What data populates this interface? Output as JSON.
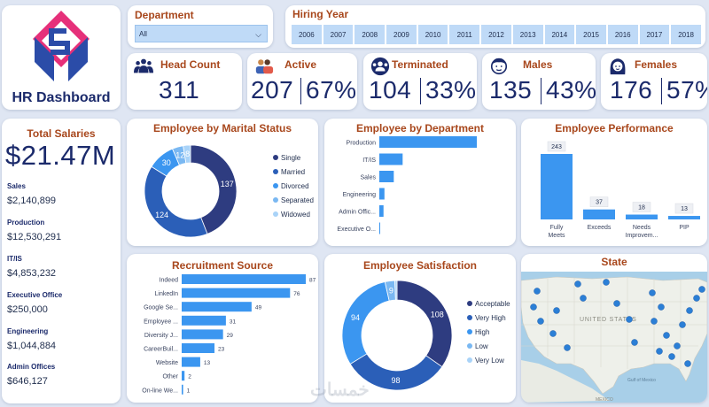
{
  "app": {
    "title": "HR Dashboard"
  },
  "filters": {
    "department_label": "Department",
    "department_value": "All",
    "hiring_year_label": "Hiring Year",
    "years": [
      "2006",
      "2007",
      "2008",
      "2009",
      "2010",
      "2011",
      "2012",
      "2013",
      "2014",
      "2015",
      "2016",
      "2017",
      "2018"
    ]
  },
  "kpis": {
    "head_count": {
      "label": "Head Count",
      "value": "311",
      "icon": "people-icon"
    },
    "active": {
      "label": "Active",
      "value": "207",
      "pct": "67%",
      "icon": "employees-icon"
    },
    "terminated": {
      "label": "Terminated",
      "value": "104",
      "pct": "33%",
      "icon": "team-remove-icon"
    },
    "males": {
      "label": "Males",
      "value": "135",
      "pct": "43%",
      "icon": "male-icon"
    },
    "females": {
      "label": "Females",
      "value": "176",
      "pct": "57%",
      "icon": "female-icon"
    }
  },
  "salaries": {
    "title": "Total Salaries",
    "total": "$21.47M",
    "items": [
      {
        "name": "Sales",
        "value": "$2,140,899"
      },
      {
        "name": "Production",
        "value": "$12,530,291"
      },
      {
        "name": "IT/IS",
        "value": "$4,853,232"
      },
      {
        "name": "Executive Office",
        "value": "$250,000"
      },
      {
        "name": "Engineering",
        "value": "$1,044,884"
      },
      {
        "name": "Admin Offices",
        "value": "$646,127"
      }
    ]
  },
  "colors": {
    "title_accent": "#a8471c",
    "navy": "#2e3c80",
    "blue": "#2f7fe0",
    "bar_blue": "#3b96f0",
    "light_blue": "#7ab8f2",
    "pale_blue": "#a9d3f8"
  },
  "chart_data": [
    {
      "type": "pie",
      "title": "Employee by Marital Status",
      "categories": [
        "Single",
        "Married",
        "Divorced",
        "Separated",
        "Widowed"
      ],
      "values": [
        137,
        124,
        30,
        12,
        8
      ],
      "labels_shown": [
        "137",
        "124",
        "30",
        "12",
        "8"
      ]
    },
    {
      "type": "bar",
      "title": "Employee by Department",
      "orientation": "horizontal",
      "categories": [
        "Production",
        "IT/IS",
        "Sales",
        "Engineering",
        "Admin Offic...",
        "Executive O..."
      ],
      "values": [
        209,
        50,
        31,
        11,
        9,
        1
      ]
    },
    {
      "type": "bar",
      "title": "Employee Performance",
      "categories": [
        "Fully Meets",
        "Exceeds",
        "Needs Improvem...",
        "PIP"
      ],
      "values": [
        243,
        37,
        18,
        13
      ]
    },
    {
      "type": "bar",
      "title": "Recruitment Source",
      "orientation": "horizontal",
      "categories": [
        "Indeed",
        "LinkedIn",
        "Google Se...",
        "Employee ...",
        "Diversity J...",
        "CareerBuil...",
        "Website",
        "Other",
        "On-line We..."
      ],
      "values": [
        87,
        76,
        49,
        31,
        29,
        23,
        13,
        2,
        1
      ]
    },
    {
      "type": "pie",
      "title": "Employee Satisfaction",
      "categories": [
        "Acceptable",
        "Very High",
        "High",
        "Low",
        "Very Low"
      ],
      "values": [
        108,
        98,
        94,
        9,
        2
      ],
      "labels_shown": [
        "108",
        "98",
        "94",
        "9",
        ""
      ]
    }
  ],
  "map": {
    "title": "State",
    "country_label": "UNITED STATES",
    "gulf_label": "Gulf of Mexico",
    "mexico_label": "MEXICO"
  },
  "watermark": "خمسات"
}
